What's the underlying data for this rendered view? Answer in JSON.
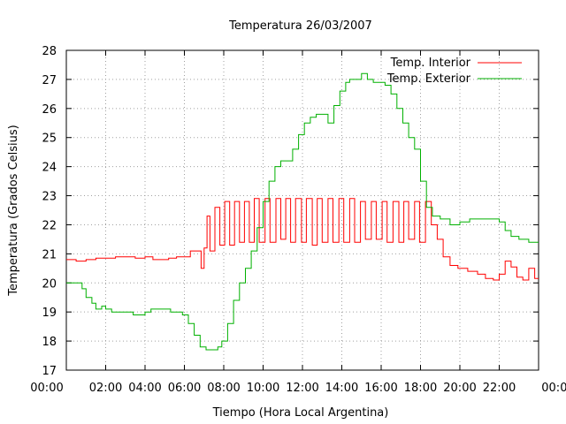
{
  "chart_data": {
    "type": "line",
    "title": "Temperatura 26/03/2007",
    "xlabel": "Tiempo (Hora Local Argentina)",
    "ylabel": "Temperatura (Grados Celsius)",
    "xlim": [
      0,
      24
    ],
    "ylim": [
      17,
      28
    ],
    "x_ticks": [
      "00:00",
      "02:00",
      "04:00",
      "06:00",
      "08:00",
      "10:00",
      "12:00",
      "14:00",
      "16:00",
      "18:00",
      "20:00",
      "22:00",
      "00:00"
    ],
    "y_ticks": [
      17,
      18,
      19,
      20,
      21,
      22,
      23,
      24,
      25,
      26,
      27,
      28
    ],
    "grid": true,
    "legend_position": "top-right",
    "series": [
      {
        "name": "Temp. Interior",
        "color": "#ff0000",
        "x": [
          0.0,
          0.5,
          1.0,
          1.5,
          2.0,
          2.5,
          3.0,
          3.5,
          4.0,
          4.4,
          4.8,
          5.2,
          5.6,
          6.0,
          6.3,
          6.6,
          6.85,
          7.0,
          7.15,
          7.3,
          7.55,
          7.8,
          8.05,
          8.3,
          8.55,
          8.8,
          9.05,
          9.3,
          9.55,
          9.8,
          10.1,
          10.35,
          10.65,
          10.9,
          11.15,
          11.4,
          11.65,
          11.95,
          12.2,
          12.5,
          12.75,
          13.0,
          13.3,
          13.55,
          13.85,
          14.1,
          14.4,
          14.65,
          14.95,
          15.2,
          15.5,
          15.75,
          16.05,
          16.3,
          16.6,
          16.9,
          17.15,
          17.4,
          17.7,
          17.95,
          18.25,
          18.55,
          18.85,
          19.15,
          19.5,
          19.9,
          20.4,
          20.9,
          21.3,
          21.7,
          22.0,
          22.3,
          22.6,
          22.9,
          23.2,
          23.5,
          23.8,
          24.0
        ],
        "values": [
          20.8,
          20.75,
          20.8,
          20.85,
          20.85,
          20.9,
          20.9,
          20.85,
          20.9,
          20.8,
          20.8,
          20.85,
          20.9,
          20.9,
          21.1,
          21.1,
          20.5,
          21.2,
          22.3,
          21.1,
          22.6,
          21.3,
          22.8,
          21.3,
          22.8,
          21.4,
          22.8,
          21.4,
          22.9,
          21.4,
          22.9,
          21.4,
          22.9,
          21.5,
          22.9,
          21.4,
          22.9,
          21.4,
          22.9,
          21.3,
          22.9,
          21.4,
          22.9,
          21.4,
          22.9,
          21.4,
          22.9,
          21.4,
          22.8,
          21.5,
          22.8,
          21.5,
          22.8,
          21.4,
          22.8,
          21.4,
          22.8,
          21.5,
          22.8,
          21.4,
          22.8,
          22.0,
          21.5,
          20.9,
          20.6,
          20.5,
          20.4,
          20.3,
          20.15,
          20.1,
          20.3,
          20.75,
          20.55,
          20.2,
          20.1,
          20.5,
          20.15,
          20.15
        ]
      },
      {
        "name": "Temp. Exterior",
        "color": "#00b000",
        "x": [
          0.0,
          0.5,
          0.8,
          1.0,
          1.3,
          1.5,
          1.8,
          2.0,
          2.3,
          2.6,
          3.0,
          3.4,
          3.7,
          4.0,
          4.3,
          4.7,
          5.0,
          5.3,
          5.6,
          5.9,
          6.2,
          6.5,
          6.8,
          7.1,
          7.4,
          7.7,
          7.9,
          8.2,
          8.5,
          8.8,
          9.1,
          9.4,
          9.7,
          10.0,
          10.3,
          10.6,
          10.9,
          11.2,
          11.5,
          11.8,
          12.1,
          12.4,
          12.7,
          13.0,
          13.3,
          13.6,
          13.9,
          14.2,
          14.4,
          14.7,
          15.0,
          15.3,
          15.6,
          15.9,
          16.2,
          16.5,
          16.8,
          17.1,
          17.4,
          17.7,
          18.0,
          18.3,
          18.6,
          19.0,
          19.5,
          20.0,
          20.5,
          21.0,
          21.5,
          22.0,
          22.3,
          22.6,
          23.0,
          23.5,
          24.0
        ],
        "values": [
          20.0,
          20.0,
          19.8,
          19.5,
          19.3,
          19.1,
          19.2,
          19.1,
          19.0,
          19.0,
          19.0,
          18.9,
          18.9,
          19.0,
          19.1,
          19.1,
          19.1,
          19.0,
          19.0,
          18.9,
          18.6,
          18.2,
          17.8,
          17.7,
          17.7,
          17.8,
          18.0,
          18.6,
          19.4,
          20.0,
          20.5,
          21.1,
          21.9,
          22.8,
          23.5,
          24.0,
          24.2,
          24.2,
          24.6,
          25.1,
          25.5,
          25.7,
          25.8,
          25.8,
          25.5,
          26.1,
          26.6,
          26.9,
          27.0,
          27.0,
          27.2,
          27.0,
          26.9,
          26.9,
          26.8,
          26.5,
          26.0,
          25.5,
          25.0,
          24.6,
          23.5,
          22.6,
          22.3,
          22.2,
          22.0,
          22.1,
          22.2,
          22.2,
          22.2,
          22.1,
          21.8,
          21.6,
          21.5,
          21.4,
          21.4
        ]
      }
    ]
  }
}
